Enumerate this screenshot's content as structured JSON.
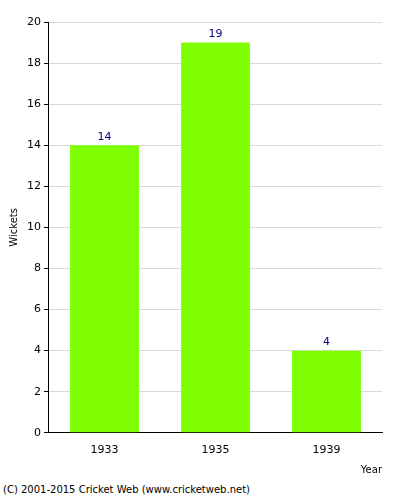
{
  "chart_data": {
    "type": "bar",
    "categories": [
      "1933",
      "1935",
      "1939"
    ],
    "values": [
      14,
      19,
      4
    ],
    "color": "#80ff00",
    "ylim": [
      0,
      20
    ],
    "yticks": [
      0,
      2,
      4,
      6,
      8,
      10,
      12,
      14,
      16,
      18,
      20
    ],
    "grid": true,
    "data_labels": true,
    "x_label": "Year",
    "y_label": "Wickets",
    "annotations": [
      "(C) 2001-2015 Cricket Web (www.cricketweb.net)"
    ]
  }
}
